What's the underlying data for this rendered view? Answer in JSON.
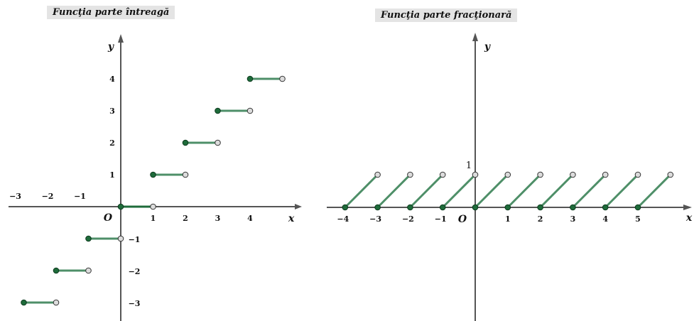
{
  "chart_data": [
    {
      "type": "line",
      "title": "Funcţia parte întreagă",
      "x_label": "x",
      "y_label": "y",
      "origin_label": "O",
      "x_ticks": [
        "−3",
        "−2",
        "−1",
        "1",
        "2",
        "3",
        "4"
      ],
      "y_ticks": [
        "−3",
        "−2",
        "−1",
        "1",
        "2",
        "3",
        "4"
      ],
      "segments": [
        {
          "x": [
            -3,
            -2
          ],
          "y": -3
        },
        {
          "x": [
            -2,
            -1
          ],
          "y": -2
        },
        {
          "x": [
            -1,
            0
          ],
          "y": -1
        },
        {
          "x": [
            0,
            1
          ],
          "y": 0
        },
        {
          "x": [
            1,
            2
          ],
          "y": 1
        },
        {
          "x": [
            2,
            3
          ],
          "y": 2
        },
        {
          "x": [
            3,
            4
          ],
          "y": 3
        },
        {
          "x": [
            4,
            5
          ],
          "y": 4
        }
      ],
      "closed_point_color": "#1e6b3a",
      "open_point_color": "#dcdcdc",
      "line_color": "#4e8f68"
    },
    {
      "type": "line",
      "title": "Funcţia parte fracţionară",
      "x_label": "x",
      "y_label": "y",
      "origin_label": "O",
      "x_ticks": [
        "−4",
        "−3",
        "−2",
        "−1",
        "1",
        "2",
        "3",
        "4",
        "5"
      ],
      "y_ticks": [
        "1"
      ],
      "segments": [
        {
          "x": [
            -4,
            -3
          ]
        },
        {
          "x": [
            -3,
            -2
          ]
        },
        {
          "x": [
            -2,
            -1
          ]
        },
        {
          "x": [
            -1,
            0
          ]
        },
        {
          "x": [
            0,
            1
          ]
        },
        {
          "x": [
            1,
            2
          ]
        },
        {
          "x": [
            2,
            3
          ]
        },
        {
          "x": [
            3,
            4
          ]
        },
        {
          "x": [
            4,
            5
          ]
        },
        {
          "x": [
            5,
            6
          ]
        }
      ],
      "closed_point_color": "#1e6b3a",
      "open_point_color": "#dcdcdc",
      "line_color": "#4e8f68"
    }
  ]
}
